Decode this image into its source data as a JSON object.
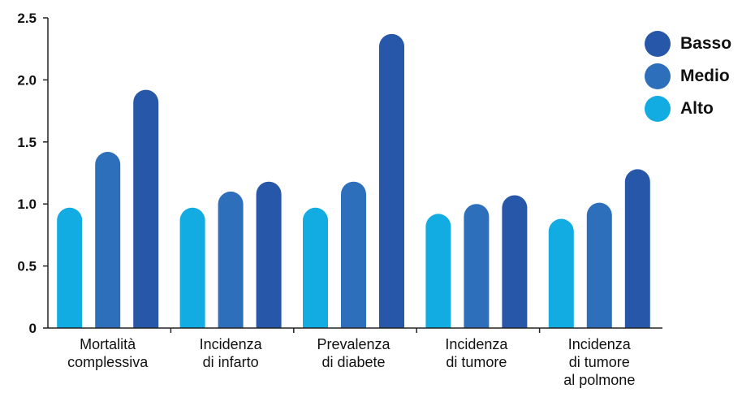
{
  "chart_data": {
    "type": "bar",
    "categories": [
      [
        "Mortalità",
        "complessiva"
      ],
      [
        "Incidenza",
        "di infarto"
      ],
      [
        "Prevalenza",
        "di diabete"
      ],
      [
        "Incidenza",
        "di tumore"
      ],
      [
        "Incidenza",
        "di tumore",
        "al polmone"
      ]
    ],
    "series": [
      {
        "name": "Alto",
        "color": "#12ABE2",
        "values": [
          0.97,
          0.97,
          0.97,
          0.92,
          0.88
        ]
      },
      {
        "name": "Medio",
        "color": "#2E6FBC",
        "values": [
          1.42,
          1.1,
          1.18,
          1.0,
          1.01
        ]
      },
      {
        "name": "Basso",
        "color": "#2757A8",
        "values": [
          1.92,
          1.18,
          2.37,
          1.07,
          1.28
        ]
      }
    ],
    "legend_order": [
      "Basso",
      "Medio",
      "Alto"
    ],
    "legend_position": "top-right",
    "ylim": [
      0,
      2.5
    ],
    "yticks": [
      "0",
      "0.5",
      "1.0",
      "1.5",
      "2.0",
      "2.5"
    ],
    "grid": false
  }
}
